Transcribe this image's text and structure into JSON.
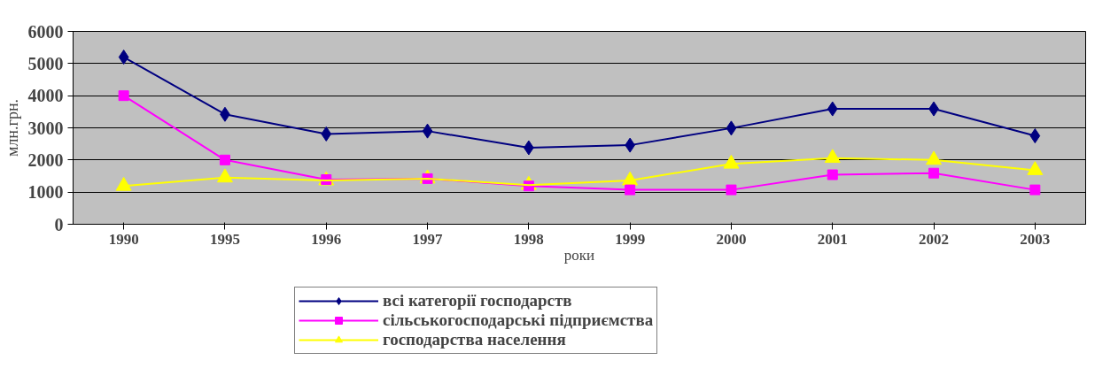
{
  "chart_data": {
    "type": "line",
    "xlabel": "роки",
    "ylabel": "млн.грн.",
    "categories": [
      "1990",
      "1995",
      "1996",
      "1997",
      "1998",
      "1999",
      "2000",
      "2001",
      "2002",
      "2003"
    ],
    "series": [
      {
        "name": "всі категорії господарств",
        "color": "#000080",
        "marker": "diamond",
        "values": [
          5200,
          3420,
          2810,
          2900,
          2380,
          2460,
          2990,
          3590,
          3590,
          2750
        ]
      },
      {
        "name": "сільськогосподарські підприємства",
        "color": "#ff00ff",
        "marker": "square",
        "values": [
          4000,
          2000,
          1390,
          1420,
          1190,
          1070,
          1070,
          1540,
          1590,
          1070
        ]
      },
      {
        "name": "господарства населення",
        "color": "#ffff00",
        "marker": "triangle",
        "values": [
          1190,
          1450,
          1360,
          1420,
          1220,
          1360,
          1880,
          2060,
          2000,
          1680
        ]
      }
    ],
    "ylim": [
      0,
      6000
    ],
    "yticks": [
      0,
      1000,
      2000,
      3000,
      4000,
      5000,
      6000
    ],
    "grid": "y",
    "legend": "bottom"
  }
}
